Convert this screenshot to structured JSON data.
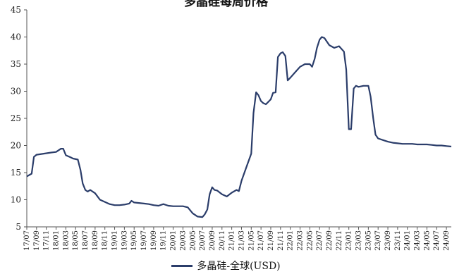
{
  "chart_data": {
    "type": "line",
    "title": "多晶硅每周价格",
    "xlabel": "",
    "ylabel": "",
    "ylim": [
      5,
      45
    ],
    "yticks": [
      5,
      10,
      15,
      20,
      25,
      30,
      35,
      40,
      45
    ],
    "xlim": [
      "2017-07",
      "2024-10"
    ],
    "xtick_labels": [
      "17/07",
      "17/09",
      "17/11",
      "18/01",
      "18/03",
      "18/05",
      "18/07",
      "18/09",
      "18/11",
      "19/01",
      "19/03",
      "19/05",
      "19/07",
      "19/09",
      "19/11",
      "20/01",
      "20/03",
      "20/05",
      "20/07",
      "20/09",
      "20/11",
      "21/01",
      "21/03",
      "21/05",
      "21/07",
      "21/09",
      "21/11",
      "22/01",
      "22/03",
      "22/05",
      "22/07",
      "22/09",
      "22/11",
      "23/01",
      "23/03",
      "23/05",
      "23/07",
      "23/09",
      "23/11",
      "24/01",
      "24/03",
      "24/05",
      "24/07",
      "24/09"
    ],
    "grid": false,
    "legend_position": "bottom",
    "series": [
      {
        "name": "多晶硅-全球(USD)",
        "color": "#2b3d6a",
        "x": [
          "2017-07-01",
          "2017-08-01",
          "2017-08-15",
          "2017-09-01",
          "2017-10-15",
          "2017-12-01",
          "2018-01-01",
          "2018-02-01",
          "2018-02-15",
          "2018-03-01",
          "2018-04-01",
          "2018-04-15",
          "2018-05-15",
          "2018-06-01",
          "2018-06-15",
          "2018-07-01",
          "2018-07-15",
          "2018-08-01",
          "2018-09-01",
          "2018-10-01",
          "2018-11-01",
          "2018-12-01",
          "2019-01-01",
          "2019-02-01",
          "2019-03-01",
          "2019-04-01",
          "2019-04-15",
          "2019-05-01",
          "2019-06-01",
          "2019-07-01",
          "2019-08-01",
          "2019-09-01",
          "2019-10-01",
          "2019-11-01",
          "2019-12-01",
          "2020-01-01",
          "2020-02-01",
          "2020-03-01",
          "2020-04-01",
          "2020-05-01",
          "2020-06-01",
          "2020-07-01",
          "2020-07-15",
          "2020-08-01",
          "2020-08-15",
          "2020-09-01",
          "2020-09-15",
          "2020-10-01",
          "2020-11-01",
          "2020-12-01",
          "2021-01-01",
          "2021-02-01",
          "2021-02-15",
          "2021-03-01",
          "2021-04-01",
          "2021-05-01",
          "2021-05-15",
          "2021-06-01",
          "2021-06-15",
          "2021-07-01",
          "2021-07-15",
          "2021-08-01",
          "2021-09-01",
          "2021-09-15",
          "2021-10-01",
          "2021-10-15",
          "2021-11-01",
          "2021-11-15",
          "2021-12-01",
          "2021-12-15",
          "2022-01-01",
          "2022-02-01",
          "2022-03-01",
          "2022-04-01",
          "2022-05-01",
          "2022-05-15",
          "2022-06-01",
          "2022-06-15",
          "2022-07-01",
          "2022-07-15",
          "2022-08-01",
          "2022-09-01",
          "2022-10-01",
          "2022-11-01",
          "2022-12-01",
          "2022-12-15",
          "2023-01-01",
          "2023-01-15",
          "2023-02-01",
          "2023-02-15",
          "2023-03-01",
          "2023-04-01",
          "2023-05-01",
          "2023-05-15",
          "2023-06-01",
          "2023-06-15",
          "2023-07-01",
          "2023-08-01",
          "2023-09-01",
          "2023-10-01",
          "2023-11-01",
          "2023-12-01",
          "2024-01-01",
          "2024-02-01",
          "2024-03-01",
          "2024-04-01",
          "2024-05-01",
          "2024-06-01",
          "2024-07-01",
          "2024-08-01",
          "2024-09-01",
          "2024-10-01"
        ],
        "y": [
          14.3,
          14.8,
          17.9,
          18.3,
          18.5,
          18.7,
          18.8,
          19.4,
          19.4,
          18.2,
          17.8,
          17.6,
          17.4,
          15.5,
          13.0,
          11.8,
          11.5,
          11.8,
          11.2,
          10.0,
          9.6,
          9.2,
          9.0,
          9.0,
          9.1,
          9.3,
          9.8,
          9.5,
          9.4,
          9.3,
          9.2,
          9.0,
          8.9,
          9.2,
          8.9,
          8.8,
          8.8,
          8.8,
          8.6,
          7.5,
          6.9,
          6.8,
          7.3,
          8.2,
          11.0,
          12.3,
          11.8,
          11.7,
          11.0,
          10.6,
          11.3,
          11.8,
          11.6,
          13.5,
          16.0,
          18.5,
          26.0,
          29.8,
          29.3,
          28.2,
          27.8,
          27.6,
          28.5,
          29.7,
          29.8,
          36.3,
          37.0,
          37.2,
          36.5,
          32.0,
          32.5,
          33.5,
          34.5,
          35.0,
          35.0,
          34.5,
          36.0,
          38.0,
          39.5,
          40.0,
          39.8,
          38.5,
          38.0,
          38.3,
          37.3,
          34.0,
          23.0,
          23.0,
          30.5,
          31.0,
          30.8,
          31.0,
          31.0,
          29.0,
          25.0,
          22.0,
          21.3,
          21.0,
          20.7,
          20.5,
          20.4,
          20.3,
          20.3,
          20.3,
          20.2,
          20.2,
          20.2,
          20.1,
          20.0,
          20.0,
          19.9,
          19.8
        ]
      }
    ]
  }
}
